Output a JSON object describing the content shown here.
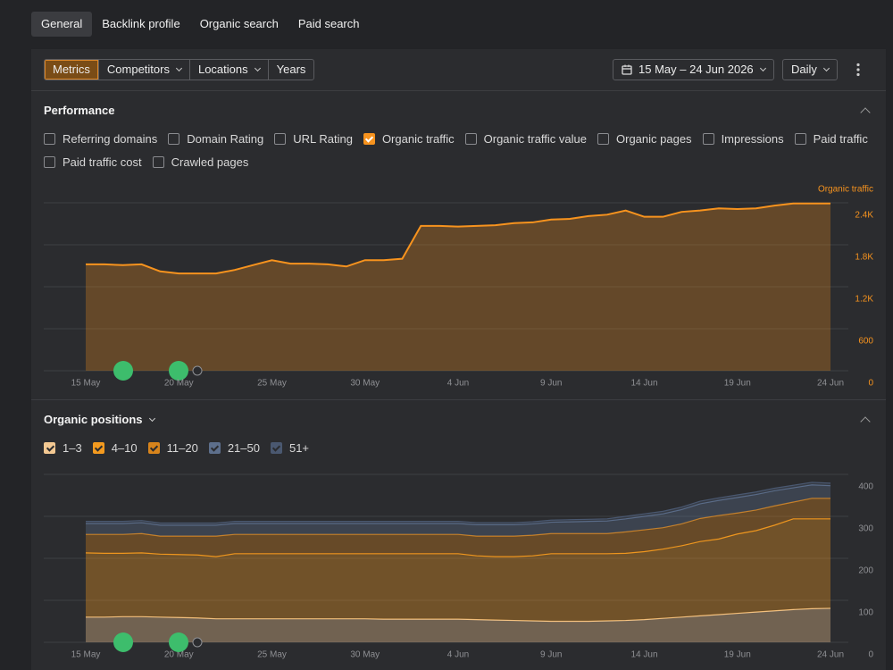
{
  "tabs": [
    "General",
    "Backlink profile",
    "Organic search",
    "Paid search"
  ],
  "toolbar": {
    "segments": [
      "Metrics",
      "Competitors",
      "Locations",
      "Years"
    ],
    "date_range": "15 May – 24 Jun 2026",
    "interval": "Daily"
  },
  "performance": {
    "title": "Performance",
    "metrics": [
      {
        "label": "Referring domains",
        "checked": false
      },
      {
        "label": "Domain Rating",
        "checked": false
      },
      {
        "label": "URL Rating",
        "checked": false
      },
      {
        "label": "Organic traffic",
        "checked": true
      },
      {
        "label": "Organic traffic value",
        "checked": false
      },
      {
        "label": "Organic pages",
        "checked": false
      },
      {
        "label": "Impressions",
        "checked": false
      },
      {
        "label": "Paid traffic",
        "checked": false
      },
      {
        "label": "Paid traffic cost",
        "checked": false
      },
      {
        "label": "Crawled pages",
        "checked": false
      }
    ]
  },
  "organic_positions": {
    "title": "Organic positions"
  },
  "chart_data": [
    {
      "type": "area",
      "ylabel": "Organic traffic",
      "color": "#f7931e",
      "grid": true,
      "categories": [
        "15 May",
        null,
        null,
        null,
        null,
        "20 May",
        null,
        null,
        null,
        null,
        "25 May",
        null,
        null,
        null,
        null,
        "30 May",
        null,
        null,
        null,
        null,
        "4 Jun",
        null,
        null,
        null,
        null,
        "9 Jun",
        null,
        null,
        null,
        null,
        "14 Jun",
        null,
        null,
        null,
        null,
        "19 Jun",
        null,
        null,
        null,
        null,
        "24 Jun"
      ],
      "values": [
        1520,
        1520,
        1510,
        1520,
        1420,
        1390,
        1390,
        1390,
        1440,
        1510,
        1580,
        1530,
        1530,
        1520,
        1490,
        1580,
        1580,
        1600,
        2070,
        2070,
        2060,
        2070,
        2080,
        2110,
        2120,
        2160,
        2170,
        2210,
        2230,
        2290,
        2200,
        2200,
        2270,
        2290,
        2320,
        2310,
        2320,
        2360,
        2390,
        2390,
        2390
      ],
      "ylim": [
        0,
        2400
      ],
      "yticks": [
        0,
        600,
        {
          "value": 1200,
          "label": "1.2K"
        },
        {
          "value": 1800,
          "label": "1.8K"
        },
        {
          "value": 2400,
          "label": "2.4K"
        }
      ]
    },
    {
      "type": "stacked_area",
      "grid": true,
      "categories": [
        "15 May",
        null,
        null,
        null,
        null,
        "20 May",
        null,
        null,
        null,
        null,
        "25 May",
        null,
        null,
        null,
        null,
        "30 May",
        null,
        null,
        null,
        null,
        "4 Jun",
        null,
        null,
        null,
        null,
        "9 Jun",
        null,
        null,
        null,
        null,
        "14 Jun",
        null,
        null,
        null,
        null,
        "19 Jun",
        null,
        null,
        null,
        null,
        "24 Jun"
      ],
      "ylim": [
        0,
        400
      ],
      "yticks": [
        0,
        100,
        200,
        300,
        400
      ],
      "series": [
        {
          "name": "1–3",
          "color": "#f3c892",
          "values": [
            60,
            60,
            61,
            61,
            60,
            59,
            58,
            56,
            56,
            56,
            56,
            56,
            56,
            56,
            56,
            56,
            55,
            55,
            55,
            55,
            55,
            54,
            53,
            52,
            51,
            50,
            50,
            50,
            51,
            52,
            54,
            57,
            60,
            63,
            66,
            69,
            72,
            75,
            78,
            80,
            81
          ]
        },
        {
          "name": "4–10",
          "color": "#f39a1f",
          "values": [
            153,
            152,
            151,
            152,
            150,
            150,
            150,
            148,
            155,
            155,
            155,
            155,
            155,
            155,
            155,
            155,
            156,
            156,
            156,
            156,
            156,
            152,
            151,
            152,
            155,
            161,
            161,
            161,
            160,
            160,
            162,
            165,
            170,
            177,
            180,
            189,
            194,
            204,
            216,
            214,
            213
          ]
        },
        {
          "name": "11–20",
          "color": "#d7841c",
          "values": [
            44,
            45,
            45,
            46,
            43,
            44,
            45,
            49,
            46,
            46,
            46,
            46,
            46,
            46,
            46,
            46,
            46,
            46,
            46,
            46,
            46,
            47,
            49,
            49,
            49,
            48,
            48,
            48,
            48,
            51,
            52,
            51,
            52,
            55,
            56,
            50,
            49,
            46,
            40,
            49,
            49
          ]
        },
        {
          "name": "21–50",
          "color": "#5d6f8c",
          "values": [
            26,
            26,
            26,
            26,
            26,
            26,
            26,
            26,
            26,
            26,
            26,
            26,
            26,
            26,
            26,
            26,
            26,
            26,
            26,
            26,
            26,
            27,
            27,
            27,
            27,
            27,
            28,
            29,
            30,
            31,
            32,
            33,
            34,
            35,
            36,
            37,
            37,
            36,
            34,
            32,
            30
          ]
        },
        {
          "name": "51+",
          "color": "#4a5870",
          "values": [
            5,
            5,
            5,
            5,
            5,
            5,
            5,
            5,
            5,
            5,
            5,
            5,
            5,
            5,
            5,
            5,
            5,
            5,
            5,
            5,
            5,
            5,
            5,
            5,
            5,
            5,
            5,
            5,
            5,
            6,
            6,
            6,
            6,
            6,
            6,
            6,
            6,
            6,
            6,
            6,
            6
          ]
        }
      ]
    }
  ]
}
